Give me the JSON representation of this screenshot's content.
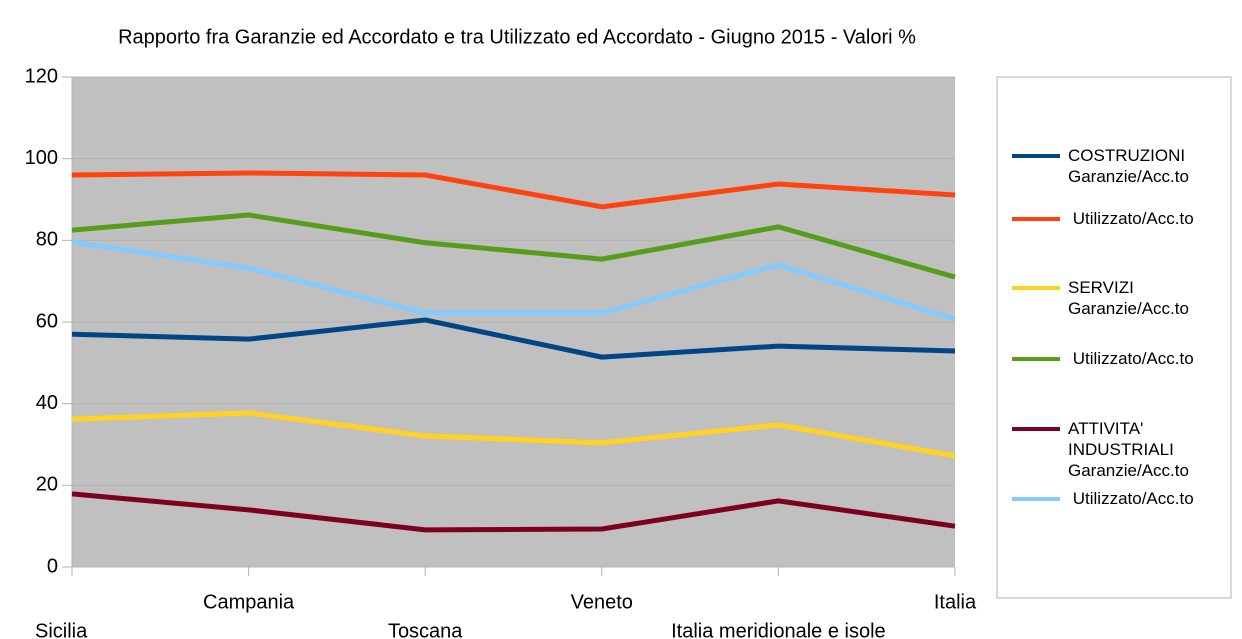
{
  "chart_data": {
    "type": "line",
    "title": "Rapporto fra Garanzie ed Accordato e tra Utilizzato ed Accordato - Giugno 2015 - Valori %",
    "categories": [
      "Sicilia",
      "Campania",
      "Toscana",
      "Veneto",
      "Italia meridionale e isole",
      "Italia"
    ],
    "series": [
      {
        "name": "COSTRUZIONI Garanzie/Acc.to",
        "color": "#004586",
        "values": [
          57,
          55.8,
          60.5,
          51.4,
          54.1,
          52.9
        ]
      },
      {
        "name": " Utilizzato/Acc.to",
        "color": "#ff420e",
        "values": [
          96,
          96.5,
          96,
          88.2,
          93.8,
          91.1
        ]
      },
      {
        "name": "SERVIZI Garanzie/Acc.to",
        "color": "#ffd320",
        "values": [
          36.2,
          37.7,
          32.1,
          30.4,
          34.8,
          27.2
        ]
      },
      {
        "name": " Utilizzato/Acc.to",
        "color": "#579d1c",
        "values": [
          82.5,
          86.2,
          79.4,
          75.4,
          83.3,
          71
        ]
      },
      {
        "name": "ATTIVITA' INDUSTRIALI Garanzie/Acc.to",
        "color": "#7e0021",
        "values": [
          17.9,
          14,
          9.1,
          9.3,
          16.2,
          10
        ]
      },
      {
        "name": " Utilizzato/Acc.to",
        "color": "#83caff",
        "values": [
          79.6,
          73.2,
          62.2,
          62.2,
          74,
          60.7
        ]
      }
    ],
    "ylim": [
      0,
      120
    ],
    "yticks": [
      0,
      20,
      40,
      60,
      80,
      100,
      120
    ],
    "grid": true,
    "legend": "right"
  }
}
